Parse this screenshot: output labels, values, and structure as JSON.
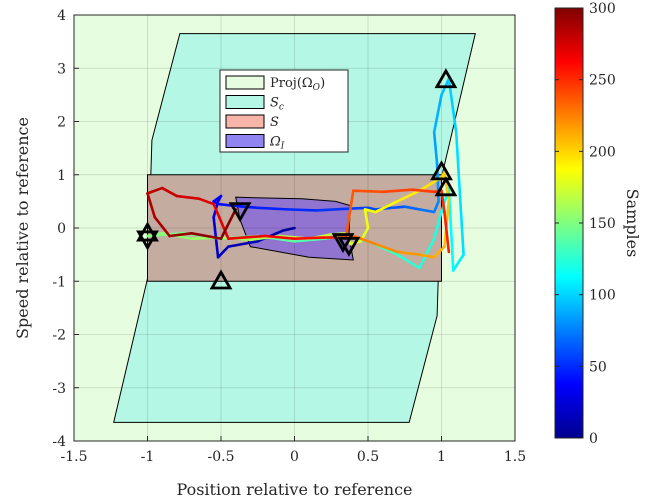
{
  "chart_data": {
    "type": "line",
    "xlabel": "Position relative to reference",
    "ylabel": "Speed relative to reference",
    "xlim": [
      -1.5,
      1.5
    ],
    "ylim": [
      -4,
      4
    ],
    "xticks": [
      "-1.5",
      "-1",
      "-0.5",
      "0",
      "0.5",
      "1",
      "1.5"
    ],
    "yticks": [
      "-4",
      "-3",
      "-2",
      "-1",
      "0",
      "1",
      "2",
      "3",
      "4"
    ],
    "grid": true,
    "legend_position": "top-center",
    "colorbar": {
      "label": "Samples",
      "range": [
        0,
        300
      ],
      "ticks": [
        "0",
        "50",
        "100",
        "150",
        "200",
        "250",
        "300"
      ],
      "colormap": "jet"
    },
    "regions": [
      {
        "name": "Proj(Ω_O)",
        "fill": "#e6fde0",
        "polygon": [
          [
            -1.5,
            -4
          ],
          [
            1.5,
            -4
          ],
          [
            1.5,
            4
          ],
          [
            -1.5,
            4
          ]
        ]
      },
      {
        "name": "S_c",
        "fill": "#b4f7e4",
        "polygon": [
          [
            -0.78,
            3.65
          ],
          [
            1.23,
            3.65
          ],
          [
            1.0,
            0.95
          ],
          [
            0.97,
            -1.65
          ],
          [
            0.78,
            -3.65
          ],
          [
            -1.23,
            -3.65
          ],
          [
            -1.0,
            -0.95
          ],
          [
            -0.97,
            1.65
          ]
        ]
      },
      {
        "name": "S",
        "fill": "#c4aca0",
        "polygon": [
          [
            -1.0,
            -1.0
          ],
          [
            1.0,
            -1.0
          ],
          [
            1.0,
            1.0
          ],
          [
            -1.0,
            1.0
          ]
        ]
      },
      {
        "name": "Ω_I",
        "fill": "#8868d8",
        "opacity": 0.85,
        "polygon": [
          [
            -0.4,
            0.58
          ],
          [
            -0.3,
            0.57
          ],
          [
            0.05,
            0.55
          ],
          [
            0.28,
            0.5
          ],
          [
            0.38,
            0.42
          ],
          [
            0.37,
            -0.15
          ],
          [
            0.4,
            -0.6
          ],
          [
            0.1,
            -0.55
          ],
          [
            -0.3,
            -0.35
          ],
          [
            -0.37,
            0.15
          ]
        ]
      }
    ],
    "legend": [
      {
        "text": "Proj(Ω",
        "sub": "O",
        "tail": ")",
        "fill": "#e6fde0"
      },
      {
        "text": "S",
        "sub": "c",
        "tail": "",
        "fill": "#b4f7e4"
      },
      {
        "text": "S",
        "sub": "",
        "tail": "",
        "fill": "#f7b4a8"
      },
      {
        "text": "Ω",
        "sub": "I",
        "tail": "",
        "fill": "#8f84f0"
      }
    ],
    "trajectories": [
      {
        "x": [
          0.0,
          -0.08,
          -0.25,
          -0.45,
          -0.52,
          -0.53,
          -0.55,
          -0.52,
          -0.5
        ],
        "y": [
          0.0,
          -0.05,
          -0.25,
          -0.35,
          -0.55,
          -0.3,
          0.2,
          0.5,
          0.6
        ],
        "t0": 0,
        "t1": 35
      },
      {
        "x": [
          -0.5,
          -0.55,
          -0.52,
          -0.35,
          -0.25,
          -0.05,
          0.15,
          0.35,
          0.5,
          0.55
        ],
        "y": [
          0.6,
          0.5,
          0.45,
          0.4,
          0.38,
          0.35,
          0.33,
          0.36,
          0.38,
          0.35
        ],
        "t0": 35,
        "t1": 60
      },
      {
        "x": [
          0.55,
          0.75,
          0.85,
          0.95,
          0.98,
          0.97,
          0.95,
          1.0,
          1.05,
          1.1,
          1.15,
          1.08,
          1.05
        ],
        "y": [
          0.35,
          0.4,
          0.35,
          0.3,
          0.5,
          1.2,
          1.8,
          2.5,
          2.8,
          1.8,
          -0.5,
          -0.8,
          0.75
        ],
        "t0": 60,
        "t1": 115
      },
      {
        "x": [
          1.05,
          1.0,
          0.95,
          0.85,
          0.7,
          0.5,
          0.35,
          0.2,
          0.0,
          -0.25,
          -0.5,
          -0.75,
          -1.0
        ],
        "y": [
          0.75,
          0.3,
          -0.2,
          -0.75,
          -0.5,
          -0.25,
          -0.15,
          -0.2,
          -0.25,
          -0.15,
          -0.2,
          -0.1,
          -0.15
        ],
        "t0": 115,
        "t1": 150
      },
      {
        "x": [
          -1.0,
          -0.9,
          -0.7,
          -0.5,
          -0.3,
          -0.1,
          0.1,
          0.25,
          0.35,
          0.38
        ],
        "y": [
          -0.15,
          -0.1,
          -0.2,
          -0.18,
          -0.22,
          -0.15,
          -0.2,
          -0.12,
          -0.1,
          -0.3
        ],
        "t0": 150,
        "t1": 175
      },
      {
        "x": [
          0.38,
          0.45,
          0.5,
          0.48,
          0.55,
          0.7,
          0.85,
          1.0,
          1.02
        ],
        "y": [
          -0.3,
          -0.25,
          0.0,
          0.35,
          0.3,
          0.5,
          0.7,
          0.95,
          1.05
        ],
        "t0": 175,
        "t1": 200
      },
      {
        "x": [
          1.02,
          1.05,
          1.02,
          0.95,
          0.85,
          0.7,
          0.55,
          0.45,
          0.4,
          0.35
        ],
        "y": [
          1.05,
          0.5,
          -0.35,
          -0.55,
          -0.5,
          -0.45,
          -0.3,
          -0.2,
          -0.15,
          -0.18
        ],
        "t0": 200,
        "t1": 235
      },
      {
        "x": [
          0.35,
          0.4,
          0.6,
          0.8,
          0.95,
          1.0,
          1.02,
          1.05
        ],
        "y": [
          -0.18,
          0.7,
          0.68,
          0.72,
          0.68,
          0.7,
          0.3,
          -0.45
        ],
        "t0": 235,
        "t1": 255
      },
      {
        "x": [
          0.35,
          0.2,
          0.0,
          -0.2,
          -0.45,
          -0.55,
          -0.65,
          -0.8,
          -0.9,
          -1.0,
          -0.95,
          -0.85,
          -0.7,
          -0.5,
          -0.4
        ],
        "y": [
          -0.18,
          -0.18,
          -0.2,
          -0.15,
          -0.2,
          0.45,
          0.55,
          0.6,
          0.75,
          0.65,
          0.2,
          -0.15,
          -0.1,
          -0.2,
          0.35
        ],
        "t0": 255,
        "t1": 300
      }
    ],
    "markers": [
      {
        "x": -1.0,
        "y": -0.1,
        "shape": "triangle-up"
      },
      {
        "x": -1.0,
        "y": -0.2,
        "shape": "triangle-down"
      },
      {
        "x": -0.5,
        "y": -1.0,
        "shape": "triangle-up"
      },
      {
        "x": -0.37,
        "y": 0.33,
        "shape": "triangle-down"
      },
      {
        "x": 0.33,
        "y": -0.25,
        "shape": "triangle-down"
      },
      {
        "x": 0.37,
        "y": -0.32,
        "shape": "triangle-down"
      },
      {
        "x": 1.0,
        "y": 1.05,
        "shape": "triangle-up"
      },
      {
        "x": 1.03,
        "y": 0.75,
        "shape": "triangle-up"
      },
      {
        "x": 1.03,
        "y": 2.78,
        "shape": "triangle-up"
      }
    ]
  }
}
